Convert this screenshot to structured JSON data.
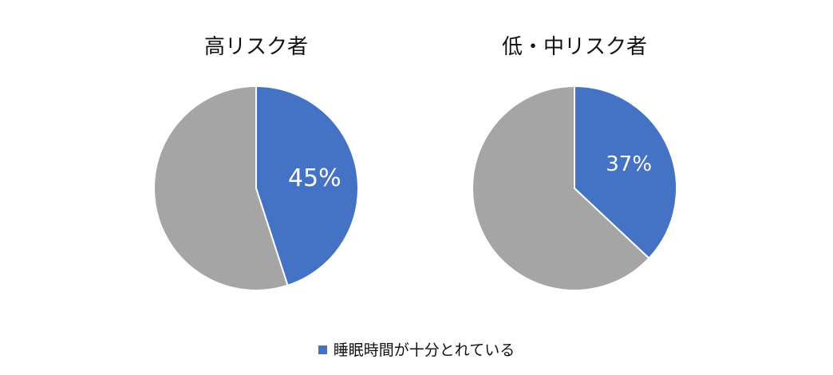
{
  "chart_data": [
    {
      "type": "pie",
      "title": "高リスク者",
      "slices": [
        {
          "label": "睡眠時間が十分とれている",
          "value": 45,
          "display": "45%",
          "color": "#4472C4"
        },
        {
          "label": "",
          "value": 55,
          "display": "",
          "color": "#A5A5A5"
        }
      ]
    },
    {
      "type": "pie",
      "title": "低・中リスク者",
      "slices": [
        {
          "label": "睡眠時間が十分とれている",
          "value": 37,
          "display": "37%",
          "color": "#4472C4"
        },
        {
          "label": "",
          "value": 63,
          "display": "",
          "color": "#A5A5A5"
        }
      ]
    }
  ],
  "legend": {
    "items": [
      {
        "label": "睡眠時間が十分とれている",
        "color": "#4472C4"
      }
    ]
  }
}
